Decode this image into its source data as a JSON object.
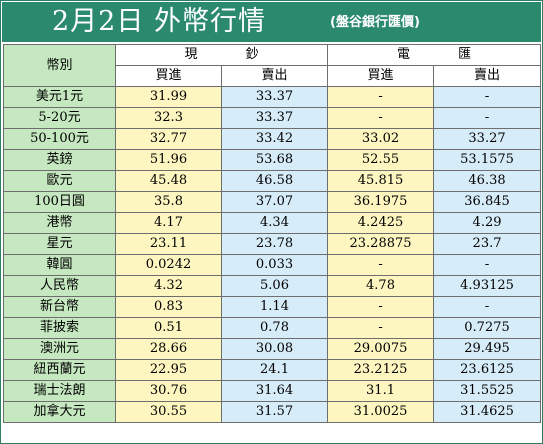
{
  "title": "2月2日 外幣行情",
  "subtitle": "(盤谷銀行匯價)",
  "headers": {
    "currency": "幣別",
    "cash": "現 鈔",
    "telegraphic": "電 匯",
    "buy": "買進",
    "sell": "賣出"
  },
  "colors": {
    "title_bar": "#2b8a6e",
    "name_column": "#c6e8c0",
    "buy_column": "#fdf6c0",
    "sell_column": "#d7ecf9"
  },
  "rows": [
    {
      "name": "美元1元",
      "cash_buy": "31.99",
      "cash_sell": "33.37",
      "tt_buy": "-",
      "tt_sell": "-"
    },
    {
      "name": "5-20元",
      "cash_buy": "32.3",
      "cash_sell": "33.37",
      "tt_buy": "-",
      "tt_sell": "-"
    },
    {
      "name": "50-100元",
      "cash_buy": "32.77",
      "cash_sell": "33.42",
      "tt_buy": "33.02",
      "tt_sell": "33.27"
    },
    {
      "name": "英鎊",
      "cash_buy": "51.96",
      "cash_sell": "53.68",
      "tt_buy": "52.55",
      "tt_sell": "53.1575"
    },
    {
      "name": "歐元",
      "cash_buy": "45.48",
      "cash_sell": "46.58",
      "tt_buy": "45.815",
      "tt_sell": "46.38"
    },
    {
      "name": "100日圓",
      "cash_buy": "35.8",
      "cash_sell": "37.07",
      "tt_buy": "36.1975",
      "tt_sell": "36.845"
    },
    {
      "name": "港幣",
      "cash_buy": "4.17",
      "cash_sell": "4.34",
      "tt_buy": "4.2425",
      "tt_sell": "4.29"
    },
    {
      "name": "星元",
      "cash_buy": "23.11",
      "cash_sell": "23.78",
      "tt_buy": "23.28875",
      "tt_sell": "23.7"
    },
    {
      "name": "韓圓",
      "cash_buy": "0.0242",
      "cash_sell": "0.033",
      "tt_buy": "-",
      "tt_sell": "-"
    },
    {
      "name": "人民幣",
      "cash_buy": "4.32",
      "cash_sell": "5.06",
      "tt_buy": "4.78",
      "tt_sell": "4.93125"
    },
    {
      "name": "新台幣",
      "cash_buy": "0.83",
      "cash_sell": "1.14",
      "tt_buy": "-",
      "tt_sell": "-"
    },
    {
      "name": "菲披索",
      "cash_buy": "0.51",
      "cash_sell": "0.78",
      "tt_buy": "-",
      "tt_sell": "0.7275"
    },
    {
      "name": "澳洲元",
      "cash_buy": "28.66",
      "cash_sell": "30.08",
      "tt_buy": "29.0075",
      "tt_sell": "29.495"
    },
    {
      "name": "紐西蘭元",
      "cash_buy": "22.95",
      "cash_sell": "24.1",
      "tt_buy": "23.2125",
      "tt_sell": "23.6125"
    },
    {
      "name": "瑞士法朗",
      "cash_buy": "30.76",
      "cash_sell": "31.64",
      "tt_buy": "31.1",
      "tt_sell": "31.5525"
    },
    {
      "name": "加拿大元",
      "cash_buy": "30.55",
      "cash_sell": "31.57",
      "tt_buy": "31.0025",
      "tt_sell": "31.4625"
    }
  ]
}
